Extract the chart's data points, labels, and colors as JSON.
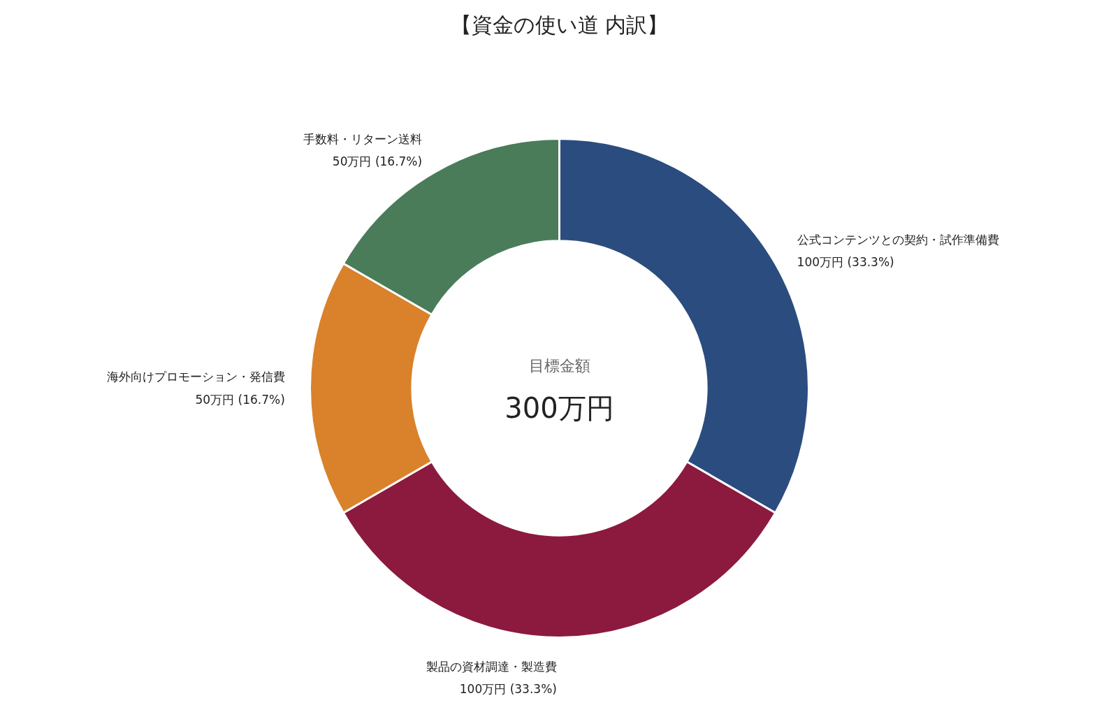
{
  "chart_data": {
    "type": "donut",
    "title": "【資金の使い道 内訳】",
    "categories": [
      "公式コンテンツとの契約・試作準備費",
      "製品の資材調達・製造費",
      "海外向けプロモーション・発信費",
      "手数料・リターン送料"
    ],
    "values": [
      100,
      100,
      50,
      50
    ],
    "value_labels": [
      "100万円 (33.3%)",
      "100万円 (33.3%)",
      "50万円 (16.7%)",
      "50万円 (16.7%)"
    ],
    "colors": [
      "#2b4c7e",
      "#8b1a3e",
      "#d9822b",
      "#4a7c59"
    ],
    "annotations": [
      "目標金額",
      "300万円"
    ]
  }
}
